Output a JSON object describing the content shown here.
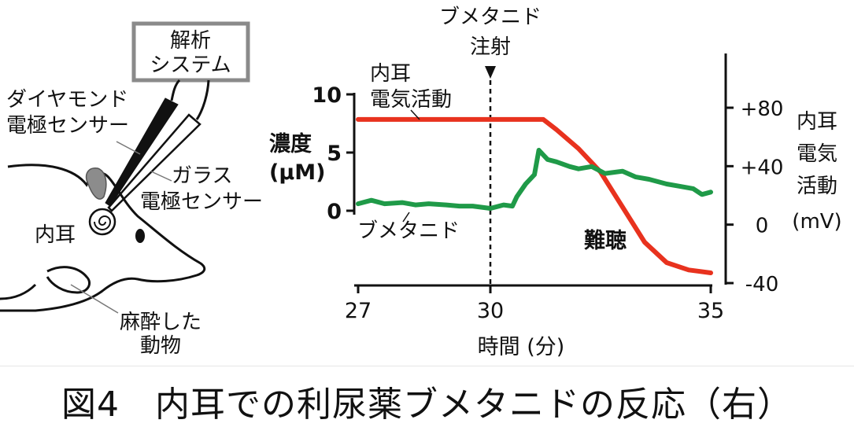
{
  "diagram": {
    "analysis_box": [
      "解析",
      "システム"
    ],
    "diamond_sensor": [
      "ダイヤモンド",
      "電極センサー"
    ],
    "glass_sensor": [
      "ガラス",
      "電極センサー"
    ],
    "inner_ear": "内耳",
    "animal": [
      "麻酔した",
      "動物"
    ]
  },
  "chart": {
    "injection_label": [
      "ブメタニド",
      "注射"
    ],
    "left_axis_label": [
      "濃度",
      "(μM)"
    ],
    "right_axis_label": [
      "内耳",
      "電気",
      "活動",
      "(mV)"
    ],
    "xlabel": "時間 (分)",
    "red_series_label": [
      "内耳",
      "電気活動"
    ],
    "green_series_label": "ブメタニド",
    "hearing_loss_label": "難聴",
    "colors": {
      "red": "#e8321e",
      "green": "#1f9a48"
    }
  },
  "chart_data": {
    "type": "line",
    "x_ticks": [
      27,
      30,
      35
    ],
    "xlim": [
      27,
      35
    ],
    "y_left_ticks": [
      0,
      5,
      10
    ],
    "y_left_lim": [
      0,
      10
    ],
    "y_right_ticks": [
      "+80",
      "+40",
      "0",
      "-40"
    ],
    "y_right_values": [
      80,
      40,
      0,
      -40
    ],
    "y_right_lim": [
      -40,
      80
    ],
    "injection_time": 30,
    "series": [
      {
        "name": "内耳 電気活動",
        "axis": "right",
        "x": [
          27,
          28,
          29,
          30,
          30.5,
          31,
          31.2,
          31.5,
          32,
          32.5,
          33,
          33.5,
          34,
          34.5,
          35
        ],
        "y": [
          72,
          72,
          72,
          72,
          72,
          72,
          72,
          65,
          52,
          36,
          12,
          -12,
          -26,
          -31,
          -33
        ]
      },
      {
        "name": "ブメタニド",
        "axis": "left",
        "x": [
          27,
          27.3,
          27.6,
          28,
          28.3,
          28.6,
          29,
          29.3,
          29.6,
          30,
          30.3,
          30.5,
          30.6,
          30.8,
          31,
          31.1,
          31.3,
          31.5,
          31.8,
          32,
          32.3,
          32.6,
          33,
          33.3,
          33.6,
          34,
          34.3,
          34.6,
          34.8,
          35
        ],
        "y": [
          0.6,
          0.9,
          0.6,
          0.7,
          0.5,
          0.6,
          0.5,
          0.4,
          0.4,
          0.2,
          0.5,
          0.4,
          1.2,
          2.3,
          3.1,
          5.2,
          4.4,
          4.2,
          3.8,
          3.6,
          3.8,
          3.2,
          3.4,
          2.9,
          2.7,
          2.3,
          2.1,
          1.9,
          1.4,
          1.6
        ]
      }
    ]
  },
  "caption": "図4　内耳での利尿薬ブメタニドの反応（右）"
}
